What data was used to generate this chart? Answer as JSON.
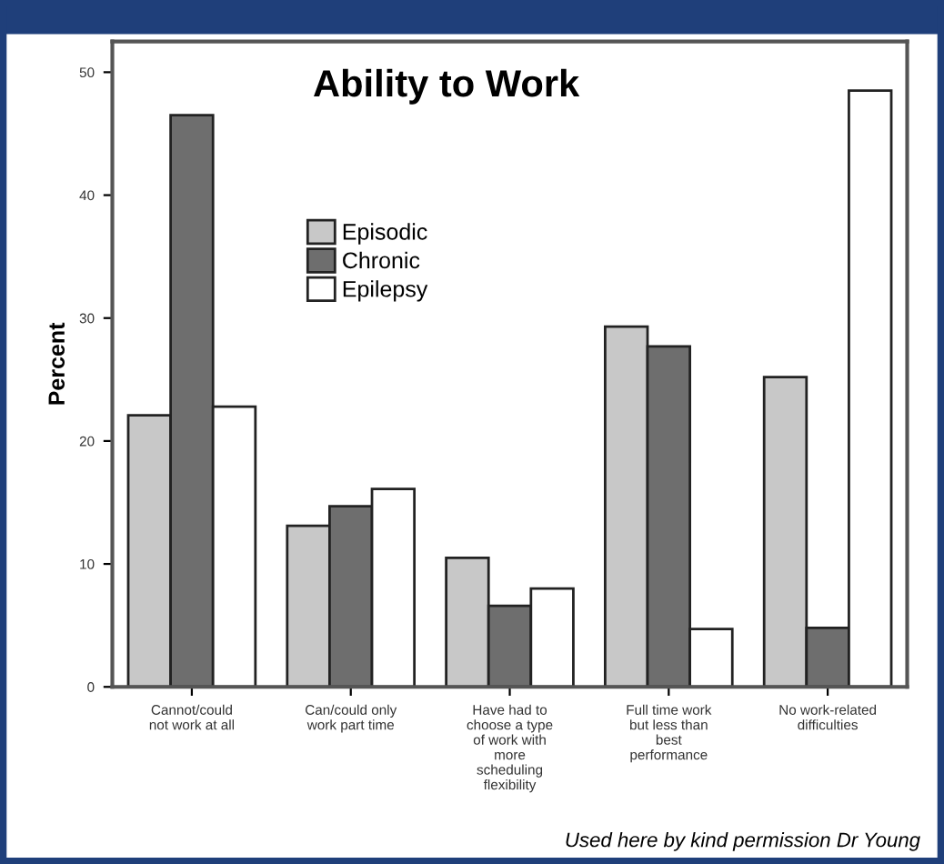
{
  "chart_data": {
    "type": "bar",
    "title": "Ability to Work",
    "ylabel": "Percent",
    "categories": [
      "Cannot/could\nnot work at all",
      "Can/could only\nwork part time",
      "Have had to\nchoose a type\nof work with\nmore\nscheduling\nflexibility",
      "Full time work\nbut less than\nbest\nperformance",
      "No work-related\ndifficulties"
    ],
    "series": [
      {
        "name": "Episodic",
        "color": "#c8c8c8",
        "values": [
          22.1,
          13.1,
          10.5,
          29.3,
          25.2
        ]
      },
      {
        "name": "Chronic",
        "color": "#6e6e6e",
        "values": [
          46.5,
          14.7,
          6.6,
          27.7,
          4.8
        ]
      },
      {
        "name": "Epilepsy",
        "color": "#ffffff",
        "values": [
          22.8,
          16.1,
          8.0,
          4.7,
          48.5
        ]
      }
    ],
    "ylim": [
      0,
      52.5
    ],
    "yticks": [
      0,
      10,
      20,
      30,
      40,
      50
    ],
    "grid": false,
    "legend": "left",
    "annotations": [
      "Used here by kind permission Dr Young"
    ]
  }
}
